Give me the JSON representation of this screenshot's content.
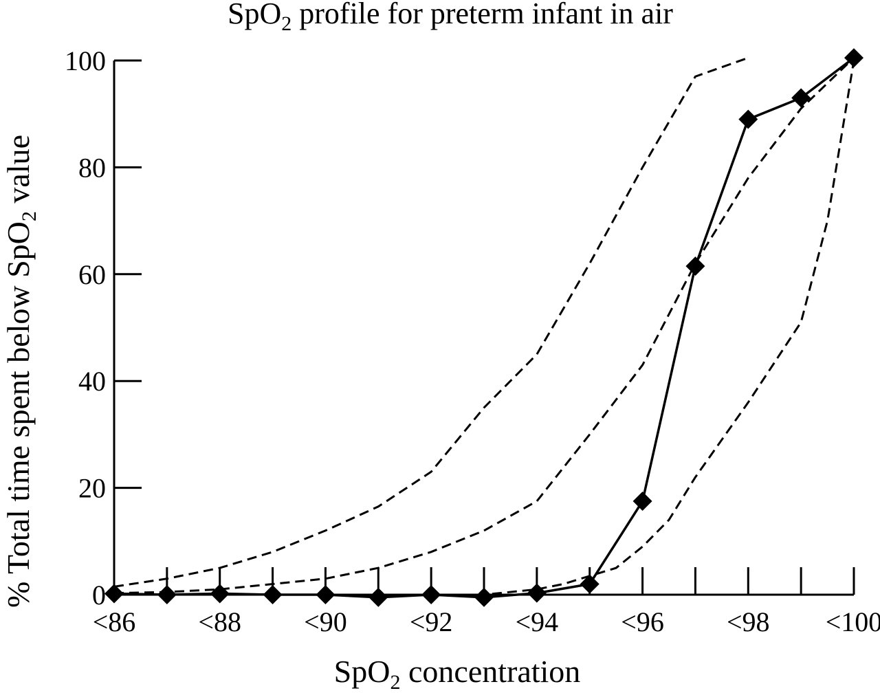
{
  "chart_data": {
    "type": "line",
    "title": {
      "main": "SpO",
      "sub": "2",
      "rest": " profile for preterm infant in air"
    },
    "xlabel": {
      "main": "SpO",
      "sub": "2",
      "rest": "  concentration"
    },
    "ylabel": {
      "main": "% Total time spent below SpO",
      "sub": "2",
      "rest": " value"
    },
    "x_ticks": [
      86,
      87,
      88,
      89,
      90,
      91,
      92,
      93,
      94,
      95,
      96,
      97,
      98,
      99,
      100
    ],
    "x_tick_labels": [
      {
        "x": 86,
        "label": "<86"
      },
      {
        "x": 88,
        "label": "<88"
      },
      {
        "x": 90,
        "label": "<90"
      },
      {
        "x": 92,
        "label": "<92"
      },
      {
        "x": 94,
        "label": "<94"
      },
      {
        "x": 96,
        "label": "<96"
      },
      {
        "x": 98,
        "label": "<98"
      },
      {
        "x": 100,
        "label": "<100"
      }
    ],
    "y_ticks": [
      0,
      20,
      40,
      60,
      80,
      100
    ],
    "xlim": [
      86,
      100
    ],
    "ylim": [
      0,
      100
    ],
    "grid": false,
    "series": [
      {
        "style": "solid-diamond",
        "x": [
          86,
          87,
          88,
          89,
          90,
          91,
          92,
          93,
          94,
          95,
          96,
          97,
          98,
          99,
          100
        ],
        "y": [
          0.2,
          0,
          0.2,
          0,
          0,
          -0.5,
          0,
          -0.5,
          0.3,
          2,
          17.5,
          61.5,
          89,
          93,
          100.5
        ]
      },
      {
        "style": "dashed",
        "x": [
          86,
          87,
          88,
          89,
          90,
          91,
          92,
          93,
          94,
          95,
          96,
          97,
          98
        ],
        "y": [
          1.5,
          3,
          5,
          8,
          12,
          16.5,
          23,
          35,
          45,
          62,
          80,
          97,
          100.5
        ]
      },
      {
        "style": "dashed",
        "x": [
          86,
          87,
          88,
          89,
          90,
          91,
          92,
          93,
          94,
          95,
          96,
          97,
          98,
          99,
          100
        ],
        "y": [
          0.3,
          0.5,
          1,
          2,
          3,
          5,
          8,
          12,
          17.5,
          30,
          43,
          62,
          78,
          91,
          100.5
        ]
      },
      {
        "style": "dashed",
        "x": [
          86,
          87,
          88,
          89,
          90,
          91,
          92,
          93,
          94,
          94.5,
          95,
          95.5,
          96,
          96.5,
          97,
          98,
          99,
          99.5,
          100
        ],
        "y": [
          0,
          0,
          0,
          0,
          0,
          0,
          0,
          0,
          1,
          2,
          3.5,
          5,
          9,
          14,
          22,
          36,
          51,
          70,
          100
        ]
      }
    ]
  }
}
